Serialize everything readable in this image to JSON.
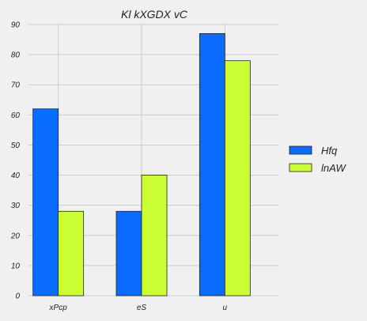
{
  "chart_data": {
    "type": "bar",
    "title": "Kl kXGDX vC",
    "xlabel": "",
    "ylabel": "",
    "categories": [
      "xPcp",
      "eS",
      "u"
    ],
    "series": [
      {
        "name": "Hfq",
        "values": [
          62,
          28,
          87
        ],
        "color": "#0a6cff"
      },
      {
        "name": "lnAW",
        "values": [
          28,
          40,
          78
        ],
        "color": "#ccff33"
      }
    ],
    "ylim": [
      0,
      90
    ],
    "yticks": [
      0,
      10,
      20,
      30,
      40,
      50,
      60,
      70,
      80,
      90
    ],
    "grid": true,
    "legend_position": "right"
  }
}
